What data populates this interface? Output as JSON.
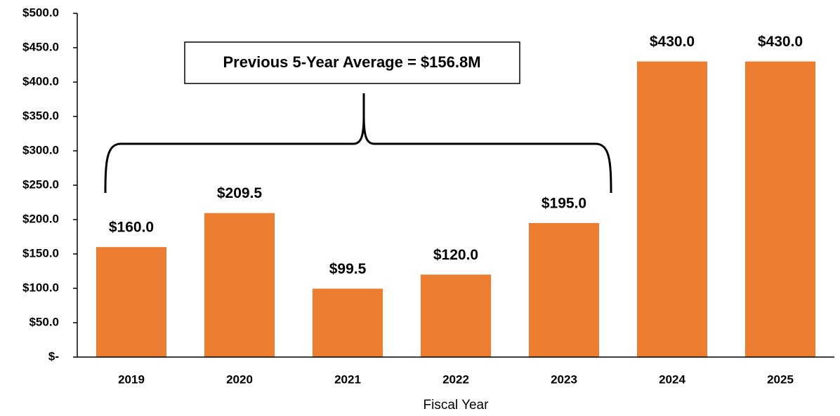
{
  "chart_data": {
    "type": "bar",
    "categories": [
      "2019",
      "2020",
      "2021",
      "2022",
      "2023",
      "2024",
      "2025"
    ],
    "values": [
      160.0,
      209.5,
      99.5,
      120.0,
      195.0,
      430.0,
      430.0
    ],
    "value_labels": [
      "$160.0",
      "$209.5",
      "$99.5",
      "$120.0",
      "$195.0",
      "$430.0",
      "$430.0"
    ],
    "color": "#ed7d31",
    "ylim": [
      0,
      500
    ],
    "yticks": [
      {
        "value": 0,
        "label": "$-"
      },
      {
        "value": 50,
        "label": "$50.0"
      },
      {
        "value": 100,
        "label": "$100.0"
      },
      {
        "value": 150,
        "label": "$150.0"
      },
      {
        "value": 200,
        "label": "$200.0"
      },
      {
        "value": 250,
        "label": "$250.0"
      },
      {
        "value": 300,
        "label": "$300.0"
      },
      {
        "value": 350,
        "label": "$350.0"
      },
      {
        "value": 400,
        "label": "$400.0"
      },
      {
        "value": 450,
        "label": "$450.0"
      },
      {
        "value": 500,
        "label": "$500.0"
      }
    ],
    "xlabel": "Fiscal Year",
    "annotation": "Previous 5-Year Average = $156.8M",
    "grid": false
  }
}
